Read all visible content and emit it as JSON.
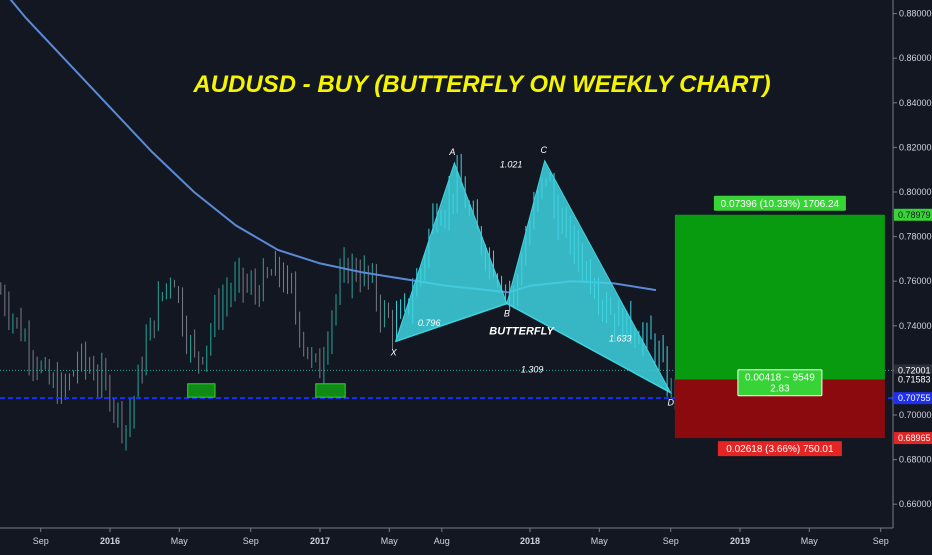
{
  "chart_data": {
    "type": "line",
    "title": "AUDUSD - BUY (BUTTERFLY ON WEEKLY CHART)",
    "symbol": "AUDUSD",
    "timeframe": "weekly",
    "ylim": [
      0.645,
      0.895
    ],
    "y_ticks": [
      "0.88000",
      "0.86000",
      "0.84000",
      "0.82000",
      "0.80000",
      "0.78000",
      "0.76000",
      "0.74000",
      "0.72000",
      "0.70000",
      "0.68000",
      "0.66000"
    ],
    "x_ticks": [
      {
        "label": "Sep",
        "t": 2015.67,
        "bold": false
      },
      {
        "label": "2016",
        "t": 2016.0,
        "bold": true
      },
      {
        "label": "May",
        "t": 2016.33,
        "bold": false
      },
      {
        "label": "Sep",
        "t": 2016.67,
        "bold": false
      },
      {
        "label": "2017",
        "t": 2017.0,
        "bold": true
      },
      {
        "label": "May",
        "t": 2017.33,
        "bold": false
      },
      {
        "label": "Aug",
        "t": 2017.58,
        "bold": false
      },
      {
        "label": "2018",
        "t": 2018.0,
        "bold": true
      },
      {
        "label": "May",
        "t": 2018.33,
        "bold": false
      },
      {
        "label": "Sep",
        "t": 2018.67,
        "bold": false
      },
      {
        "label": "2019",
        "t": 2019.0,
        "bold": true
      },
      {
        "label": "May",
        "t": 2019.33,
        "bold": false
      },
      {
        "label": "Sep",
        "t": 2019.67,
        "bold": false
      }
    ],
    "price_series": {
      "name": "",
      "points": [
        [
          2015.48,
          0.755
        ],
        [
          2015.55,
          0.742
        ],
        [
          2015.62,
          0.73
        ],
        [
          2015.7,
          0.715
        ],
        [
          2015.78,
          0.71
        ],
        [
          2015.85,
          0.725
        ],
        [
          2015.92,
          0.72
        ],
        [
          2016.0,
          0.71
        ],
        [
          2016.04,
          0.7
        ],
        [
          2016.08,
          0.695
        ],
        [
          2016.12,
          0.71
        ],
        [
          2016.18,
          0.735
        ],
        [
          2016.25,
          0.755
        ],
        [
          2016.3,
          0.765
        ],
        [
          2016.34,
          0.745
        ],
        [
          2016.4,
          0.725
        ],
        [
          2016.45,
          0.73
        ],
        [
          2016.5,
          0.745
        ],
        [
          2016.56,
          0.755
        ],
        [
          2016.62,
          0.76
        ],
        [
          2016.68,
          0.755
        ],
        [
          2016.74,
          0.76
        ],
        [
          2016.8,
          0.765
        ],
        [
          2016.86,
          0.755
        ],
        [
          2016.9,
          0.74
        ],
        [
          2016.95,
          0.725
        ],
        [
          2017.0,
          0.72
        ],
        [
          2017.05,
          0.745
        ],
        [
          2017.12,
          0.765
        ],
        [
          2017.18,
          0.765
        ],
        [
          2017.24,
          0.76
        ],
        [
          2017.3,
          0.745
        ],
        [
          2017.36,
          0.74
        ],
        [
          2017.42,
          0.75
        ],
        [
          2017.48,
          0.765
        ],
        [
          2017.54,
          0.79
        ],
        [
          2017.6,
          0.795
        ],
        [
          2017.66,
          0.805
        ],
        [
          2017.71,
          0.79
        ],
        [
          2017.78,
          0.775
        ],
        [
          2017.84,
          0.765
        ],
        [
          2017.89,
          0.756
        ],
        [
          2017.92,
          0.752
        ],
        [
          2017.97,
          0.775
        ],
        [
          2018.03,
          0.795
        ],
        [
          2018.08,
          0.81
        ],
        [
          2018.12,
          0.79
        ],
        [
          2018.18,
          0.78
        ],
        [
          2018.24,
          0.77
        ],
        [
          2018.3,
          0.76
        ],
        [
          2018.36,
          0.75
        ],
        [
          2018.42,
          0.742
        ],
        [
          2018.48,
          0.74
        ],
        [
          2018.54,
          0.735
        ],
        [
          2018.6,
          0.73
        ],
        [
          2018.64,
          0.718
        ],
        [
          2018.67,
          0.71
        ],
        [
          2018.7,
          0.714
        ]
      ]
    },
    "moving_average": {
      "name": "",
      "color": "#5b8ad6",
      "points": [
        [
          2015.45,
          0.895
        ],
        [
          2015.6,
          0.878
        ],
        [
          2015.8,
          0.858
        ],
        [
          2016.0,
          0.838
        ],
        [
          2016.2,
          0.818
        ],
        [
          2016.4,
          0.8
        ],
        [
          2016.6,
          0.785
        ],
        [
          2016.8,
          0.774
        ],
        [
          2017.0,
          0.768
        ],
        [
          2017.2,
          0.764
        ],
        [
          2017.4,
          0.761
        ],
        [
          2017.6,
          0.758
        ],
        [
          2017.8,
          0.756
        ],
        [
          2017.9,
          0.755
        ],
        [
          2018.0,
          0.758
        ],
        [
          2018.2,
          0.76
        ],
        [
          2018.4,
          0.759
        ],
        [
          2018.6,
          0.756
        ]
      ]
    },
    "pattern": {
      "name": "BUTTERFLY",
      "points": [
        {
          "label": "X",
          "t": 2017.36,
          "y": 0.733
        },
        {
          "label": "A",
          "t": 2017.64,
          "y": 0.813
        },
        {
          "label": "B",
          "t": 2017.89,
          "y": 0.75
        },
        {
          "label": "C",
          "t": 2018.07,
          "y": 0.814
        },
        {
          "label": "D",
          "t": 2018.67,
          "y": 0.71
        }
      ],
      "ratios": [
        {
          "text": "0.796",
          "t": 2017.52,
          "y": 0.74
        },
        {
          "text": "1.021",
          "t": 2017.91,
          "y": 0.811
        },
        {
          "text": "1.633",
          "t": 2018.43,
          "y": 0.733
        },
        {
          "text": "1.309",
          "t": 2018.01,
          "y": 0.719
        }
      ],
      "fill_color": "#3ed3e0"
    },
    "support_boxes": [
      {
        "t0": 2016.37,
        "t1": 2016.5,
        "y0": 0.708,
        "y1": 0.714
      },
      {
        "t0": 2016.98,
        "t1": 2017.12,
        "y0": 0.708,
        "y1": 0.714
      }
    ],
    "position": {
      "side": "long",
      "entry": 0.71583,
      "target": 0.78979,
      "stop": 0.68965,
      "t0": 2018.69,
      "t1": 2019.69,
      "target_label": "0.07396 (10.33%) 1706.24",
      "stop_label": "0.02618 (3.66%) 750.01",
      "entry_label_line1": "0.00418 ~ 9549",
      "entry_label_line2": "2.83",
      "profit_color": "#089a0f",
      "loss_color": "#8b0a0e"
    },
    "horizontal_lines": [
      {
        "y": 0.72001,
        "label": "0.72001",
        "style": "dotted",
        "color": "#26a69a"
      },
      {
        "y": 0.70755,
        "label": "0.70755",
        "style": "dashed",
        "color": "#1f2ff0"
      }
    ],
    "price_badges": [
      {
        "label": "0.78979",
        "y": 0.78979,
        "color": "#37d337"
      },
      {
        "label": "0.72001",
        "y": 0.72001,
        "color": "#2a2e39"
      },
      {
        "label": "0.71583",
        "y": 0.71583,
        "color": "#131722"
      },
      {
        "label": "0.70755",
        "y": 0.70755,
        "color": "#1f2ff0"
      },
      {
        "label": "0.68965",
        "y": 0.68965,
        "color": "#e52424"
      }
    ],
    "grid": false,
    "legend": "none"
  }
}
